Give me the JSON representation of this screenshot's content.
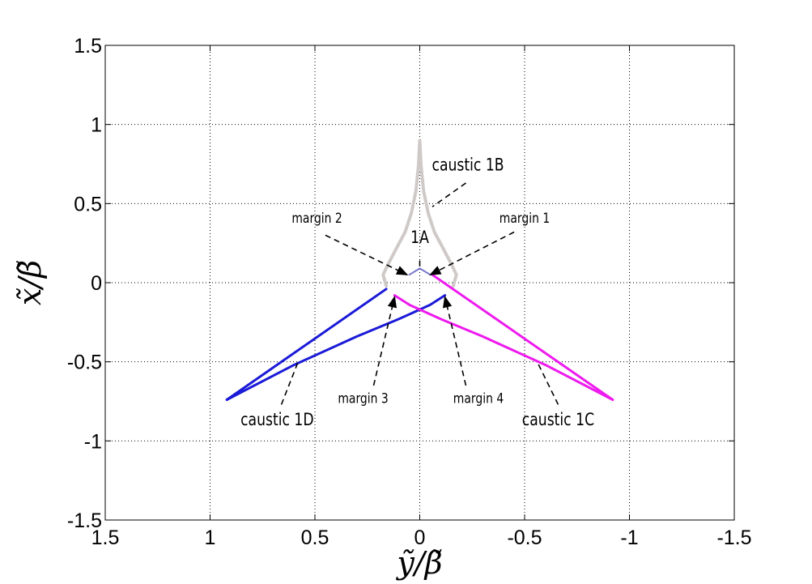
{
  "chart_data": {
    "type": "line",
    "title": "",
    "xlabel": "ỹ/β̃",
    "ylabel": "x̃/β̃",
    "x_reversed": true,
    "xlim": [
      -1.5,
      1.5
    ],
    "ylim": [
      -1.5,
      1.5
    ],
    "grid": true,
    "x_ticks": [
      1.5,
      1,
      0.5,
      0,
      -0.5,
      -1,
      -1.5
    ],
    "x_tick_labels": [
      "1.5",
      "1",
      "0.5",
      "0",
      "-0.5",
      "-1",
      "-1.5"
    ],
    "y_ticks": [
      1.5,
      1,
      0.5,
      0,
      -0.5,
      -1,
      -1.5
    ],
    "y_tick_labels": [
      "1.5",
      "1",
      "0.5",
      "0",
      "-0.5",
      "-1",
      "-1.5"
    ],
    "series": [
      {
        "key": "caustic-1b",
        "color": "#cfcac8",
        "width": 4,
        "points": [
          [
            0.16,
            -0.02
          ],
          [
            0.175,
            0.05
          ],
          [
            0.15,
            0.12
          ],
          [
            0.11,
            0.22
          ],
          [
            0.07,
            0.32
          ],
          [
            0.04,
            0.44
          ],
          [
            0.018,
            0.58
          ],
          [
            0.006,
            0.74
          ],
          [
            0.0,
            0.9
          ],
          [
            -0.006,
            0.74
          ],
          [
            -0.018,
            0.58
          ],
          [
            -0.04,
            0.44
          ],
          [
            -0.07,
            0.32
          ],
          [
            -0.11,
            0.22
          ],
          [
            -0.15,
            0.12
          ],
          [
            -0.175,
            0.05
          ],
          [
            -0.16,
            -0.02
          ]
        ]
      },
      {
        "key": "caustic-1a",
        "color": "#7777cc",
        "width": 2,
        "points": [
          [
            0.05,
            0.05
          ],
          [
            0.0,
            0.09
          ],
          [
            -0.05,
            0.05
          ]
        ]
      },
      {
        "key": "caustic-1d-upper",
        "color": "#1a1ad8",
        "width": 3,
        "points": [
          [
            0.16,
            -0.04
          ],
          [
            0.92,
            -0.74
          ]
        ]
      },
      {
        "key": "caustic-1d-lower",
        "color": "#1a1ad8",
        "width": 3,
        "points": [
          [
            0.92,
            -0.74
          ],
          [
            0.6,
            -0.52
          ],
          [
            0.3,
            -0.34
          ],
          [
            0.1,
            -0.23
          ],
          [
            -0.05,
            -0.14
          ],
          [
            -0.12,
            -0.08
          ]
        ]
      },
      {
        "key": "caustic-1c-upper",
        "color": "#ee1aee",
        "width": 3,
        "points": [
          [
            -0.06,
            0.05
          ],
          [
            -0.92,
            -0.74
          ]
        ]
      },
      {
        "key": "caustic-1c-lower",
        "color": "#ee1aee",
        "width": 3,
        "points": [
          [
            -0.92,
            -0.74
          ],
          [
            -0.6,
            -0.52
          ],
          [
            -0.3,
            -0.34
          ],
          [
            -0.1,
            -0.23
          ],
          [
            0.05,
            -0.14
          ],
          [
            0.12,
            -0.08
          ]
        ]
      }
    ],
    "annotations": [
      {
        "text": "caustic 1B",
        "size": 21,
        "text_pos": [
          -0.23,
          0.71
        ],
        "line": [
          [
            -0.22,
            0.63
          ],
          [
            -0.06,
            0.48
          ]
        ],
        "arrow": false
      },
      {
        "text": "1A",
        "size": 21,
        "text_pos": [
          0.0,
          0.25
        ],
        "line": [
          [
            0.0,
            0.14
          ],
          [
            0.0,
            0.1
          ]
        ],
        "arrow": false
      },
      {
        "text": "margin 1",
        "size": 17,
        "text_pos": [
          -0.5,
          0.38
        ],
        "line": [
          [
            -0.45,
            0.32
          ],
          [
            -0.05,
            0.05
          ]
        ],
        "arrow": true
      },
      {
        "text": "margin 2",
        "size": 17,
        "text_pos": [
          0.49,
          0.38
        ],
        "line": [
          [
            0.45,
            0.3
          ],
          [
            0.06,
            0.05
          ]
        ],
        "arrow": true
      },
      {
        "text": "margin 3",
        "size": 17,
        "text_pos": [
          0.27,
          -0.76
        ],
        "line": [
          [
            0.22,
            -0.65
          ],
          [
            0.12,
            -0.09
          ]
        ],
        "arrow": true
      },
      {
        "text": "margin 4",
        "size": 17,
        "text_pos": [
          -0.28,
          -0.76
        ],
        "line": [
          [
            -0.22,
            -0.65
          ],
          [
            -0.12,
            -0.09
          ]
        ],
        "arrow": true
      },
      {
        "text": "caustic 1D",
        "size": 21,
        "text_pos": [
          0.68,
          -0.9
        ],
        "line": [
          [
            0.66,
            -0.77
          ],
          [
            0.58,
            -0.5
          ]
        ],
        "arrow": false
      },
      {
        "text": "caustic 1C",
        "size": 21,
        "text_pos": [
          -0.66,
          -0.9
        ],
        "line": [
          [
            -0.66,
            -0.77
          ],
          [
            -0.56,
            -0.5
          ]
        ],
        "arrow": false
      }
    ]
  }
}
